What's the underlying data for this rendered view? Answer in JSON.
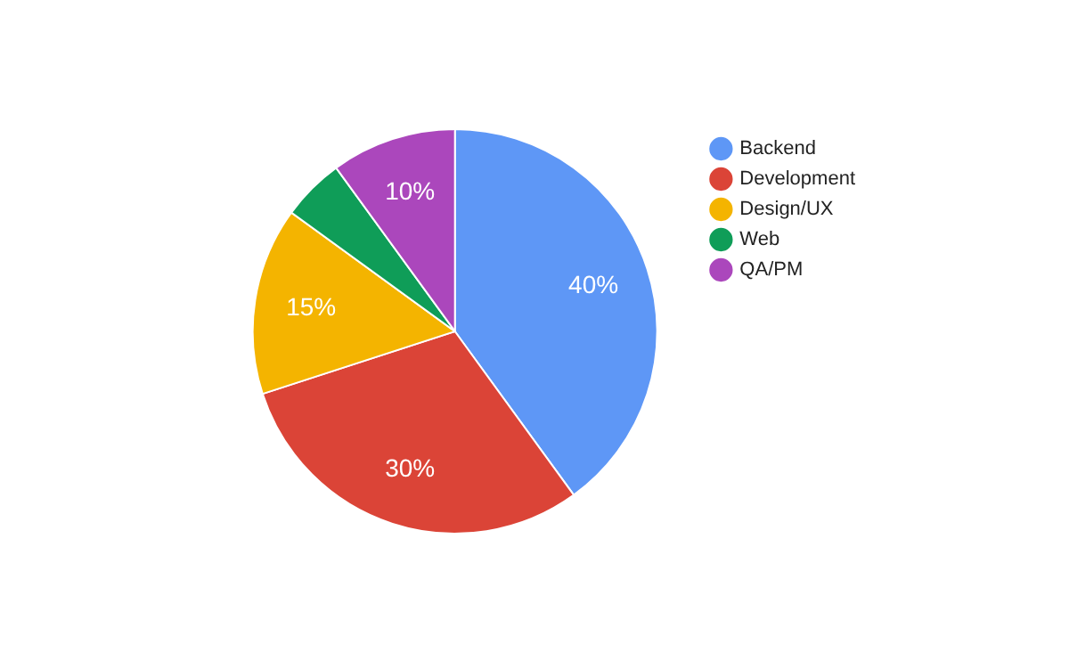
{
  "chart_data": {
    "type": "pie",
    "categories": [
      "Backend",
      "Development",
      "Design/UX",
      "Web",
      "QA/PM"
    ],
    "values": [
      40,
      30,
      15,
      5,
      10
    ],
    "colors": [
      "#5e97f6",
      "#db4437",
      "#f4b400",
      "#0f9d58",
      "#ab47bc"
    ],
    "value_labels": [
      "40%",
      "30%",
      "15%",
      null,
      "10%"
    ],
    "legend": "top right"
  }
}
